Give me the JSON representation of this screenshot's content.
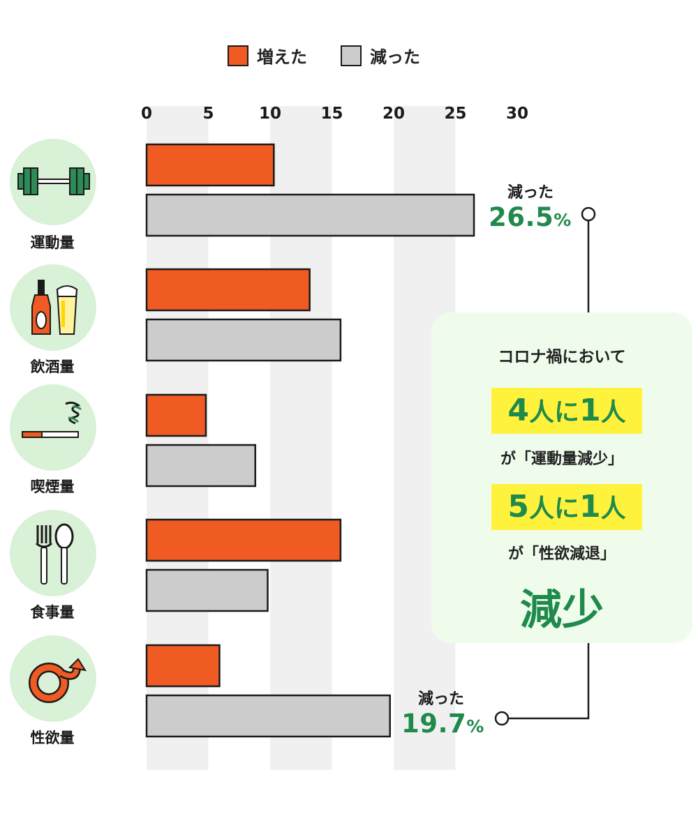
{
  "colors": {
    "increased": "#f05a23",
    "decreased": "#cccccc",
    "accent_green": "#1f8a4c",
    "highlight": "#fff23d",
    "icon_bg": "#d9f1d6",
    "panel_bg": "#effcec"
  },
  "legend": [
    {
      "label": "増えた",
      "color": "#f05a23"
    },
    {
      "label": "減った",
      "color": "#cccccc"
    }
  ],
  "chart_data": {
    "type": "bar",
    "orientation": "horizontal",
    "categories": [
      "運動量",
      "飲酒量",
      "喫煙量",
      "食事量",
      "性欲量"
    ],
    "category_icons": [
      "dumbbell-icon",
      "bottle-beer-icon",
      "cigarette-icon",
      "fork-spoon-icon",
      "male-symbol-icon"
    ],
    "series": [
      {
        "name": "増えた",
        "values": [
          10.3,
          13.2,
          4.8,
          15.7,
          5.9
        ]
      },
      {
        "name": "減った",
        "values": [
          26.5,
          15.7,
          8.8,
          9.8,
          19.7
        ]
      }
    ],
    "x_ticks": [
      0,
      5,
      10,
      15,
      20,
      25,
      30
    ],
    "xlim": [
      0,
      30
    ],
    "grid": "alternating bands",
    "legend_position": "top"
  },
  "callouts": {
    "top": {
      "label": "減った",
      "value": "26.5",
      "unit": "%"
    },
    "bottom": {
      "label": "減った",
      "value": "19.7",
      "unit": "%"
    }
  },
  "panel": {
    "title": "コロナ禍において",
    "stat1_num": "4",
    "stat1_mid": "人に",
    "stat1_num2": "1",
    "stat1_end": "人",
    "stat1_sub": "が「運動量減少」",
    "stat2_num": "5",
    "stat2_mid": "人に",
    "stat2_num2": "1",
    "stat2_end": "人",
    "stat2_sub": "が「性欲減退」",
    "main": "減少"
  }
}
